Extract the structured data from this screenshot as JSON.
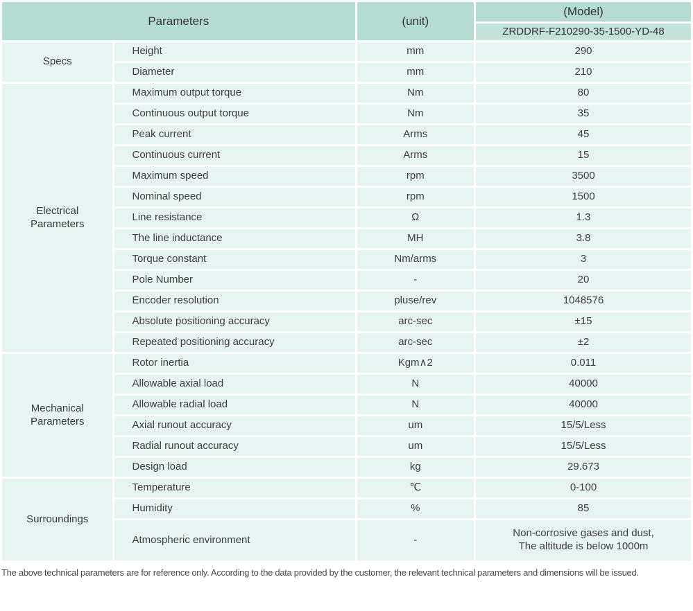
{
  "header": {
    "parameters_label": "Parameters",
    "unit_label": "(unit)",
    "model_label": "(Model)",
    "model_value": "ZRDDRF-F210290-35-1500-YD-48"
  },
  "table": {
    "groups": [
      {
        "name": "Specs",
        "rows": [
          {
            "param": "Height",
            "unit": "mm",
            "value": "290"
          },
          {
            "param": "Diameter",
            "unit": "mm",
            "value": "210"
          }
        ]
      },
      {
        "name": "Electrical\nParameters",
        "rows": [
          {
            "param": "Maximum output torque",
            "unit": "Nm",
            "value": "80"
          },
          {
            "param": "Continuous output torque",
            "unit": "Nm",
            "value": "35"
          },
          {
            "param": "Peak current",
            "unit": "Arms",
            "value": "45"
          },
          {
            "param": "Continuous current",
            "unit": "Arms",
            "value": "15"
          },
          {
            "param": "Maximum speed",
            "unit": "rpm",
            "value": "3500"
          },
          {
            "param": "Nominal speed",
            "unit": "rpm",
            "value": "1500"
          },
          {
            "param": "Line resistance",
            "unit": "Ω",
            "value": "1.3"
          },
          {
            "param": "The line inductance",
            "unit": "MH",
            "value": "3.8"
          },
          {
            "param": "Torque constant",
            "unit": "Nm/arms",
            "value": "3"
          },
          {
            "param": "Pole Number",
            "unit": "-",
            "value": "20"
          },
          {
            "param": "Encoder resolution",
            "unit": "pluse/rev",
            "value": "1048576"
          },
          {
            "param": "Absolute positioning accuracy",
            "unit": "arc-sec",
            "value": "±15"
          },
          {
            "param": "Repeated positioning accuracy",
            "unit": "arc-sec",
            "value": "±2"
          }
        ]
      },
      {
        "name": "Mechanical\nParameters",
        "rows": [
          {
            "param": "Rotor inertia",
            "unit": "Kgm∧2",
            "value": "0.011"
          },
          {
            "param": "Allowable axial load",
            "unit": "N",
            "value": "40000"
          },
          {
            "param": "Allowable radial load",
            "unit": "N",
            "value": "40000"
          },
          {
            "param": "Axial runout accuracy",
            "unit": "um",
            "value": "15/5/Less"
          },
          {
            "param": "Radial runout accuracy",
            "unit": "um",
            "value": "15/5/Less"
          },
          {
            "param": "Design load",
            "unit": "kg",
            "value": "29.673"
          }
        ]
      },
      {
        "name": "Surroundings",
        "rows": [
          {
            "param": "Temperature",
            "unit": "℃",
            "value": "0-100"
          },
          {
            "param": "Humidity",
            "unit": "%",
            "value": "85"
          },
          {
            "param": "Atmospheric environment",
            "unit": "-",
            "value": "Non-corrosive gases and dust,\nThe altitude is below 1000m"
          }
        ]
      }
    ]
  },
  "footer": {
    "note": "The above technical parameters are for reference only. According to the data provided by the customer, the relevant technical parameters and dimensions will be issued."
  },
  "colors": {
    "header_bg": "#b5dcd3",
    "model_row_bg": "#c3e3db",
    "row_bg": "#e7f4f1",
    "text": "#3d3d3d"
  }
}
